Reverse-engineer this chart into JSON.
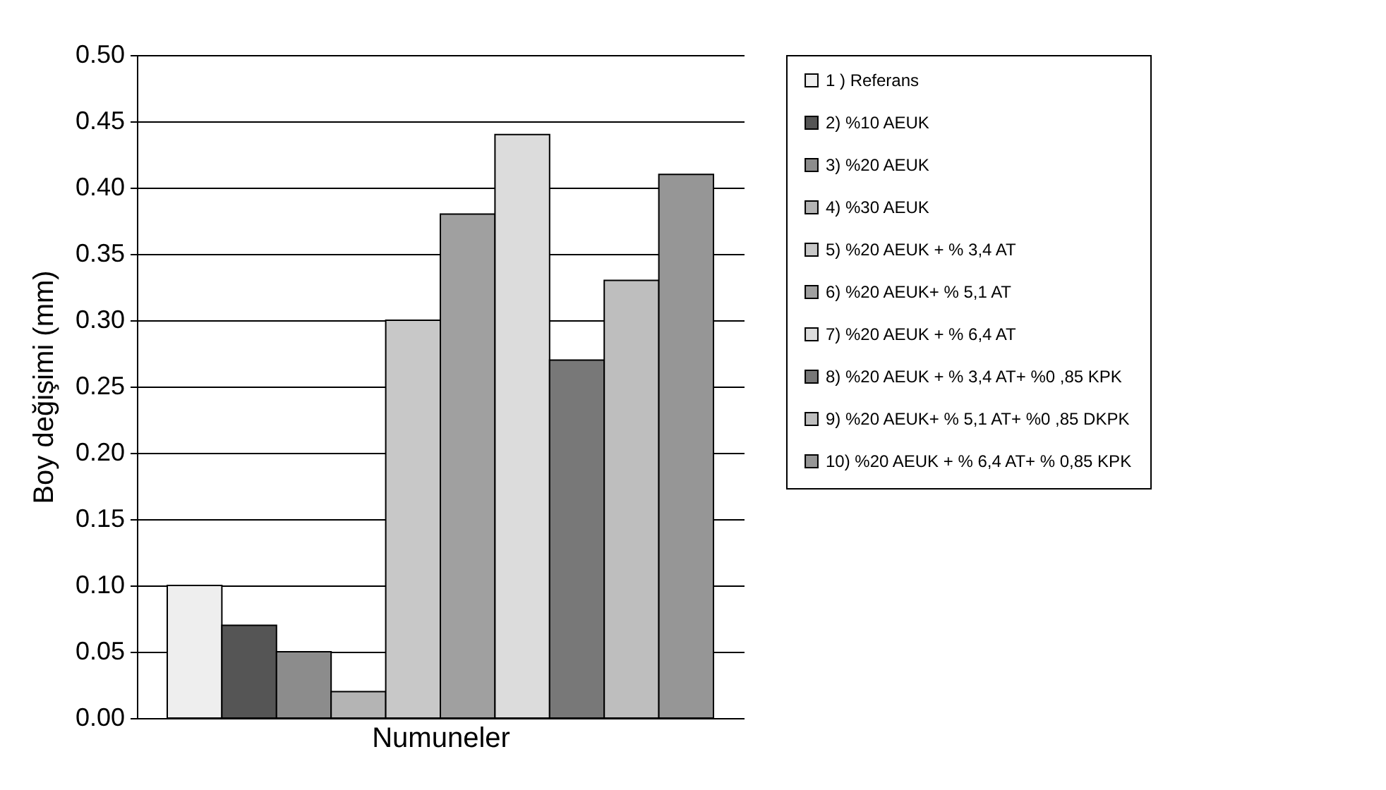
{
  "chart_data": {
    "type": "bar",
    "xlabel": "Numuneler",
    "ylabel": "Boy değişimi (mm)",
    "categories": [
      null
    ],
    "ylim": [
      0,
      0.5
    ],
    "yticks": [
      {
        "value": 0,
        "label": "0.00"
      },
      {
        "value": 0.05,
        "label": "0.05"
      },
      {
        "value": 0.1,
        "label": "0.10"
      },
      {
        "value": 0.15,
        "label": "0.15"
      },
      {
        "value": 0.2,
        "label": "0.20"
      },
      {
        "value": 0.25,
        "label": "0.25"
      },
      {
        "value": 0.3,
        "label": "0.30"
      },
      {
        "value": 0.35,
        "label": "0.35"
      },
      {
        "value": 0.4,
        "label": "0.40"
      },
      {
        "value": 0.45,
        "label": "0.45"
      },
      {
        "value": 0.5,
        "label": "0.50"
      }
    ],
    "grid": "y",
    "legend": "right",
    "series": [
      {
        "name": "1 ) Referans",
        "color": "#eeeeee",
        "values": [
          0.1
        ]
      },
      {
        "name": "2) %10 AEUK",
        "color": "#555555",
        "values": [
          0.07
        ]
      },
      {
        "name": "3) %20 AEUK",
        "color": "#8c8c8c",
        "values": [
          0.05
        ]
      },
      {
        "name": "4) %30 AEUK",
        "color": "#b4b4b4",
        "values": [
          0.02
        ]
      },
      {
        "name": "5) %20 AEUK + % 3,4 AT",
        "color": "#c8c8c8",
        "values": [
          0.3
        ]
      },
      {
        "name": "6) %20 AEUK+ % 5,1 AT",
        "color": "#a0a0a0",
        "values": [
          0.38
        ]
      },
      {
        "name": "7) %20 AEUK + % 6,4 AT",
        "color": "#dcdcdc",
        "values": [
          0.44
        ]
      },
      {
        "name": "8) %20 AEUK + % 3,4 AT+ %0 ,85 KPK",
        "color": "#787878",
        "values": [
          0.27
        ]
      },
      {
        "name": "9) %20 AEUK+ % 5,1 AT+ %0 ,85 DKPK",
        "color": "#bebebe",
        "values": [
          0.33
        ]
      },
      {
        "name": "10) %20 AEUK + % 6,4 AT+ % 0,85 KPK",
        "color": "#969696",
        "values": [
          0.41
        ]
      }
    ]
  }
}
